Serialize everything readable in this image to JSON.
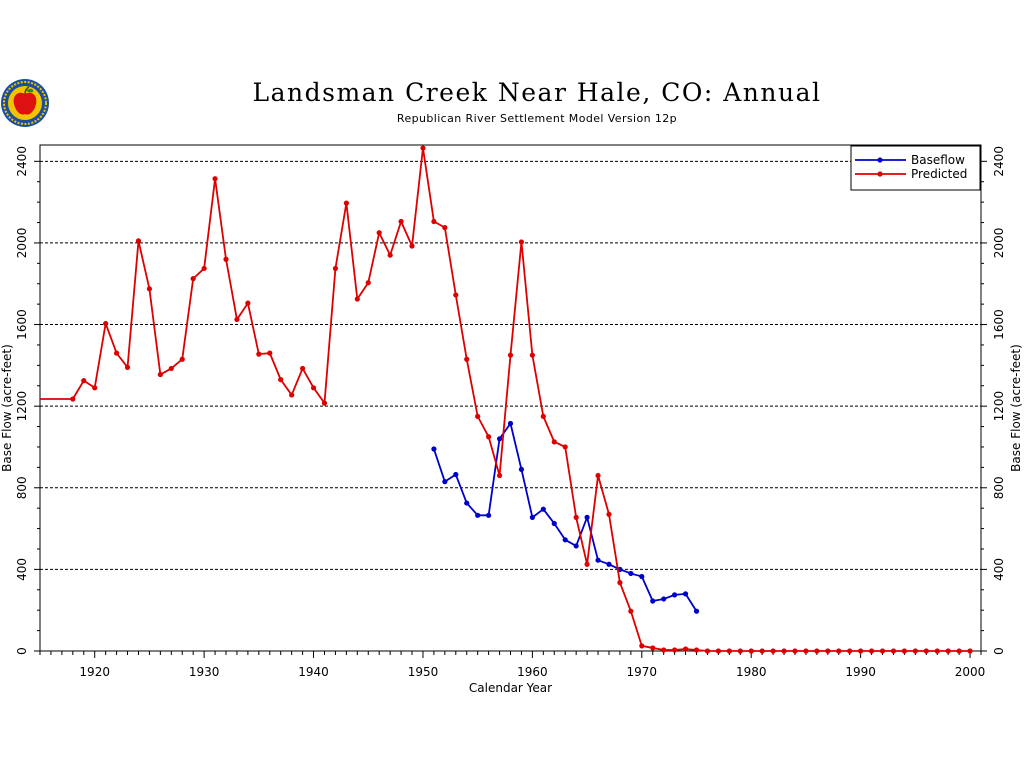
{
  "chart_data": {
    "type": "line",
    "title": "Landsman Creek Near Hale, CO: Annual",
    "subtitle": "Republican River Settlement Model Version 12p",
    "xlabel": "Calendar Year",
    "ylabel": "Base Flow (acre-feet)",
    "ylabel_right": "Base Flow (acre-feet)",
    "xlim": [
      1915,
      2001
    ],
    "ylim": [
      0,
      2480
    ],
    "xticks": [
      1920,
      1930,
      1940,
      1950,
      1960,
      1970,
      1980,
      1990,
      2000
    ],
    "yticks": [
      0,
      400,
      800,
      1200,
      1600,
      2000,
      2400
    ],
    "grid": "dashed horizontal at each y tick",
    "legend": "top-right",
    "series": [
      {
        "name": "Baseflow",
        "color": "#0000cc",
        "x": [
          1951,
          1952,
          1953,
          1954,
          1955,
          1956,
          1957,
          1958,
          1959,
          1960,
          1961,
          1962,
          1963,
          1964,
          1965,
          1966,
          1967,
          1968,
          1969,
          1970,
          1971,
          1972,
          1973,
          1974,
          1975
        ],
        "y": [
          990,
          830,
          865,
          725,
          665,
          665,
          1040,
          1115,
          890,
          655,
          695,
          625,
          545,
          515,
          655,
          445,
          425,
          400,
          380,
          365,
          245,
          255,
          275,
          280,
          195
        ]
      },
      {
        "name": "Predicted",
        "color": "#dd0000",
        "x": [
          1915,
          1918,
          1919,
          1920,
          1921,
          1922,
          1923,
          1924,
          1925,
          1926,
          1927,
          1928,
          1929,
          1930,
          1931,
          1932,
          1933,
          1934,
          1935,
          1936,
          1937,
          1938,
          1939,
          1940,
          1941,
          1942,
          1943,
          1944,
          1945,
          1946,
          1947,
          1948,
          1949,
          1950,
          1951,
          1952,
          1953,
          1954,
          1955,
          1956,
          1957,
          1958,
          1959,
          1960,
          1961,
          1962,
          1963,
          1964,
          1965,
          1966,
          1967,
          1968,
          1969,
          1970,
          1971,
          1972,
          1973,
          1974,
          1975,
          1976,
          1977,
          1978,
          1979,
          1980,
          1981,
          1982,
          1983,
          1984,
          1985,
          1986,
          1987,
          1988,
          1989,
          1990,
          1991,
          1992,
          1993,
          1994,
          1995,
          1996,
          1997,
          1998,
          1999,
          2000
        ],
        "y": [
          1235,
          1235,
          1325,
          1290,
          1605,
          1460,
          1390,
          2010,
          1775,
          1355,
          1385,
          1430,
          1825,
          1875,
          2315,
          1920,
          1625,
          1705,
          1455,
          1460,
          1330,
          1255,
          1385,
          1290,
          1215,
          1875,
          2195,
          1725,
          1805,
          2050,
          1940,
          2105,
          1985,
          2465,
          2105,
          2075,
          1745,
          1430,
          1150,
          1050,
          860,
          1450,
          2005,
          1450,
          1150,
          1025,
          1000,
          655,
          425,
          860,
          670,
          335,
          195,
          25,
          15,
          5,
          5,
          10,
          5,
          0,
          0,
          0,
          0,
          0,
          0,
          0,
          0,
          0,
          0,
          0,
          0,
          0,
          0,
          0,
          0,
          0,
          0,
          0,
          0,
          0,
          0,
          0,
          0,
          0
        ]
      }
    ]
  },
  "logo": {
    "name": "apple-seal-logo",
    "colors": [
      "#1a4fa0",
      "#f2c400",
      "#dd1111",
      "#2a8a2a"
    ]
  }
}
